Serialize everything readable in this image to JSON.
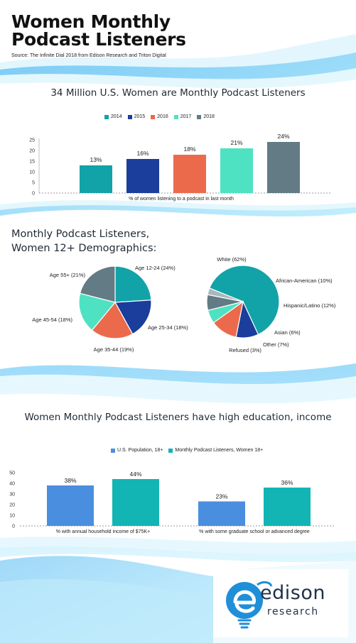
{
  "header": {
    "title_line1": "Women Monthly",
    "title_line2": "Podcast Listeners",
    "source": "Source: The Infinite Dial 2018 from Edison Research and Triton Digital"
  },
  "section1": {
    "heading": "34 Million U.S. Women are Monthly Podcast Listeners"
  },
  "section2": {
    "heading_line1": "Monthly Podcast Listeners,",
    "heading_line2": "Women 12+ Demographics:"
  },
  "section3": {
    "heading": "Women Monthly Podcast Listeners have high education, income"
  },
  "logo": {
    "word": "edison",
    "sub": "research"
  },
  "colors": {
    "teal": "#12a3a8",
    "navy": "#1b3d9b",
    "coral": "#ec6a4c",
    "mint": "#4ee2c3",
    "slate": "#627b84",
    "blue": "#4a8ee0",
    "logo_blue": "#1f8fd9"
  },
  "chart_data": [
    {
      "type": "bar",
      "categories": [
        "% of women listening to a podcast in last month"
      ],
      "series": [
        {
          "name": "2014",
          "values": [
            13
          ],
          "label": "13%",
          "color": "#12a3a8"
        },
        {
          "name": "2015",
          "values": [
            16
          ],
          "label": "16%",
          "color": "#1b3d9b"
        },
        {
          "name": "2016",
          "values": [
            18
          ],
          "label": "18%",
          "color": "#ec6a4c"
        },
        {
          "name": "2017",
          "values": [
            21
          ],
          "label": "21%",
          "color": "#4ee2c3"
        },
        {
          "name": "2018",
          "values": [
            24
          ],
          "label": "24%",
          "color": "#627b84"
        }
      ],
      "yticks": [
        "0",
        "5",
        "10",
        "15",
        "20",
        "25"
      ],
      "ylim": [
        0,
        25
      ],
      "legend": "top-center",
      "grid": false
    },
    {
      "type": "pie",
      "title": "",
      "slices": [
        {
          "label": "Age 12-24 (24%)",
          "value": 24,
          "color": "#12a3a8"
        },
        {
          "label": "Age 25-34 (18%)",
          "value": 18,
          "color": "#1b3d9b"
        },
        {
          "label": "Age 35-44 (19%)",
          "value": 19,
          "color": "#ec6a4c"
        },
        {
          "label": "Age 45-54 (18%)",
          "value": 18,
          "color": "#4ee2c3"
        },
        {
          "label": "Age 55+ (21%)",
          "value": 21,
          "color": "#627b84"
        }
      ]
    },
    {
      "type": "pie",
      "title": "",
      "slices": [
        {
          "label": "White (62%)",
          "value": 62,
          "color": "#12a3a8"
        },
        {
          "label": "African-American (10%)",
          "value": 10,
          "color": "#1b3d9b"
        },
        {
          "label": "Hispanic/Latino (12%)",
          "value": 12,
          "color": "#ec6a4c"
        },
        {
          "label": "Asian (6%)",
          "value": 6,
          "color": "#4ee2c3"
        },
        {
          "label": "Other (7%)",
          "value": 7,
          "color": "#627b84"
        },
        {
          "label": "Refused (3%)",
          "value": 3,
          "color": "#aab8bd"
        }
      ]
    },
    {
      "type": "bar",
      "categories": [
        "% with annual household income of $75K+",
        "% with some graduate school or advanced degree"
      ],
      "series": [
        {
          "name": "U.S. Population, 18+",
          "values": [
            38,
            23
          ],
          "labels": [
            "38%",
            "23%"
          ],
          "color": "#4a8ee0"
        },
        {
          "name": "Monthly Podcast Listeners, Women 18+",
          "values": [
            44,
            36
          ],
          "labels": [
            "44%",
            "36%"
          ],
          "color": "#12b5b3"
        }
      ],
      "yticks": [
        "0",
        "10",
        "20",
        "30",
        "40",
        "50"
      ],
      "ylim": [
        0,
        50
      ],
      "legend": "top-center",
      "grid": false
    }
  ]
}
